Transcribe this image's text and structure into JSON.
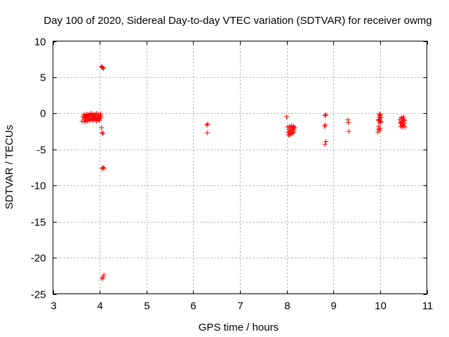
{
  "chart_data": {
    "type": "scatter",
    "title": "Day 100 of 2020, Sidereal Day-to-day VTEC variation (SDTVAR) for receiver owmg",
    "xlabel": "GPS time / hours",
    "ylabel": "SDTVAR / TECUs",
    "xlim": [
      3,
      11
    ],
    "ylim": [
      -25,
      10
    ],
    "x_ticks": [
      3,
      4,
      5,
      6,
      7,
      8,
      9,
      10,
      11
    ],
    "y_ticks": [
      10,
      5,
      0,
      -5,
      -10,
      -15,
      -20,
      -25
    ],
    "x_tick_labels": [
      "3",
      "4",
      "5",
      "6",
      "7",
      "8",
      "9",
      "10",
      "11"
    ],
    "y_tick_labels": [
      "10",
      "5",
      "0",
      "-5",
      "-10",
      "-15",
      "-20",
      "-25"
    ],
    "grid": true,
    "marker": "+",
    "color": "#ff0000",
    "series": [
      {
        "name": "SDTVAR",
        "points": [
          [
            3.62,
            -1.1
          ],
          [
            3.64,
            -0.5
          ],
          [
            3.66,
            -0.2
          ],
          [
            3.67,
            -0.9
          ],
          [
            3.68,
            -1.2
          ],
          [
            3.69,
            -0.3
          ],
          [
            3.7,
            -0.7
          ],
          [
            3.71,
            -1.0
          ],
          [
            3.72,
            -0.1
          ],
          [
            3.73,
            -0.5
          ],
          [
            3.74,
            -1.1
          ],
          [
            3.75,
            -0.2
          ],
          [
            3.76,
            -0.8
          ],
          [
            3.77,
            -0.4
          ],
          [
            3.78,
            -1.0
          ],
          [
            3.79,
            -0.1
          ],
          [
            3.8,
            -0.6
          ],
          [
            3.81,
            -0.9
          ],
          [
            3.82,
            0.0
          ],
          [
            3.83,
            -0.4
          ],
          [
            3.84,
            -0.8
          ],
          [
            3.85,
            -0.2
          ],
          [
            3.86,
            -1.0
          ],
          [
            3.87,
            -0.5
          ],
          [
            3.88,
            -0.1
          ],
          [
            3.89,
            -0.7
          ],
          [
            3.9,
            -0.9
          ],
          [
            3.91,
            -0.3
          ],
          [
            3.92,
            -0.6
          ],
          [
            3.93,
            -1.1
          ],
          [
            3.94,
            0.0
          ],
          [
            3.95,
            -0.5
          ],
          [
            3.96,
            -0.8
          ],
          [
            3.97,
            -0.2
          ],
          [
            3.98,
            -0.6
          ],
          [
            3.99,
            -1.0
          ],
          [
            4.0,
            -0.3
          ],
          [
            4.01,
            -0.7
          ],
          [
            4.02,
            -0.1
          ],
          [
            4.03,
            -0.5
          ],
          [
            3.68,
            -0.6
          ],
          [
            3.74,
            -0.4
          ],
          [
            3.8,
            -0.3
          ],
          [
            3.86,
            -0.6
          ],
          [
            3.92,
            -0.2
          ],
          [
            3.98,
            -0.9
          ],
          [
            4.04,
            -2.0
          ],
          [
            4.07,
            -2.8
          ],
          [
            4.05,
            -2.7
          ],
          [
            4.04,
            6.5
          ],
          [
            4.06,
            6.3
          ],
          [
            4.08,
            6.2
          ],
          [
            4.05,
            6.4
          ],
          [
            4.05,
            -7.7
          ],
          [
            4.07,
            -7.5
          ],
          [
            4.09,
            -7.6
          ],
          [
            4.05,
            -22.9
          ],
          [
            4.07,
            -22.7
          ],
          [
            4.09,
            -22.4
          ],
          [
            6.29,
            -1.6
          ],
          [
            6.31,
            -1.5
          ],
          [
            6.3,
            -2.7
          ],
          [
            8.0,
            -0.5
          ],
          [
            8.02,
            -1.9
          ],
          [
            8.03,
            -2.6
          ],
          [
            8.04,
            -3.0
          ],
          [
            8.05,
            -2.2
          ],
          [
            8.06,
            -1.8
          ],
          [
            8.07,
            -2.5
          ],
          [
            8.08,
            -2.9
          ],
          [
            8.09,
            -2.0
          ],
          [
            8.1,
            -1.7
          ],
          [
            8.11,
            -2.4
          ],
          [
            8.12,
            -2.8
          ],
          [
            8.13,
            -2.1
          ],
          [
            8.14,
            -1.9
          ],
          [
            8.15,
            -2.6
          ],
          [
            8.16,
            -2.3
          ],
          [
            8.17,
            -2.0
          ],
          [
            8.06,
            -3.0
          ],
          [
            8.12,
            -2.7
          ],
          [
            8.15,
            -1.8
          ],
          [
            8.82,
            -0.3
          ],
          [
            8.84,
            -0.2
          ],
          [
            8.81,
            -1.8
          ],
          [
            8.83,
            -1.6
          ],
          [
            8.82,
            -4.3
          ],
          [
            8.84,
            -3.9
          ],
          [
            9.31,
            -0.9
          ],
          [
            9.32,
            -1.3
          ],
          [
            9.33,
            -2.5
          ],
          [
            9.95,
            -2.6
          ],
          [
            9.96,
            -2.2
          ],
          [
            9.97,
            -1.8
          ],
          [
            9.97,
            -1.0
          ],
          [
            9.98,
            -0.5
          ],
          [
            9.98,
            -0.1
          ],
          [
            9.99,
            -0.3
          ],
          [
            9.99,
            -1.3
          ],
          [
            10.0,
            -0.8
          ],
          [
            10.0,
            -2.1
          ],
          [
            10.01,
            -0.2
          ],
          [
            10.01,
            -1.1
          ],
          [
            10.02,
            -0.6
          ],
          [
            10.02,
            -1.2
          ],
          [
            9.96,
            -0.9
          ],
          [
            9.99,
            -2.4
          ],
          [
            10.42,
            -0.9
          ],
          [
            10.43,
            -1.3
          ],
          [
            10.44,
            -1.8
          ],
          [
            10.45,
            -0.6
          ],
          [
            10.46,
            -1.1
          ],
          [
            10.47,
            -1.6
          ],
          [
            10.48,
            -0.7
          ],
          [
            10.49,
            -1.2
          ],
          [
            10.5,
            -1.7
          ],
          [
            10.51,
            -0.9
          ],
          [
            10.52,
            -1.4
          ],
          [
            10.53,
            -1.9
          ],
          [
            10.45,
            -1.4
          ],
          [
            10.5,
            -0.5
          ],
          [
            10.52,
            -1.0
          ],
          [
            10.47,
            -1.9
          ]
        ]
      }
    ]
  }
}
